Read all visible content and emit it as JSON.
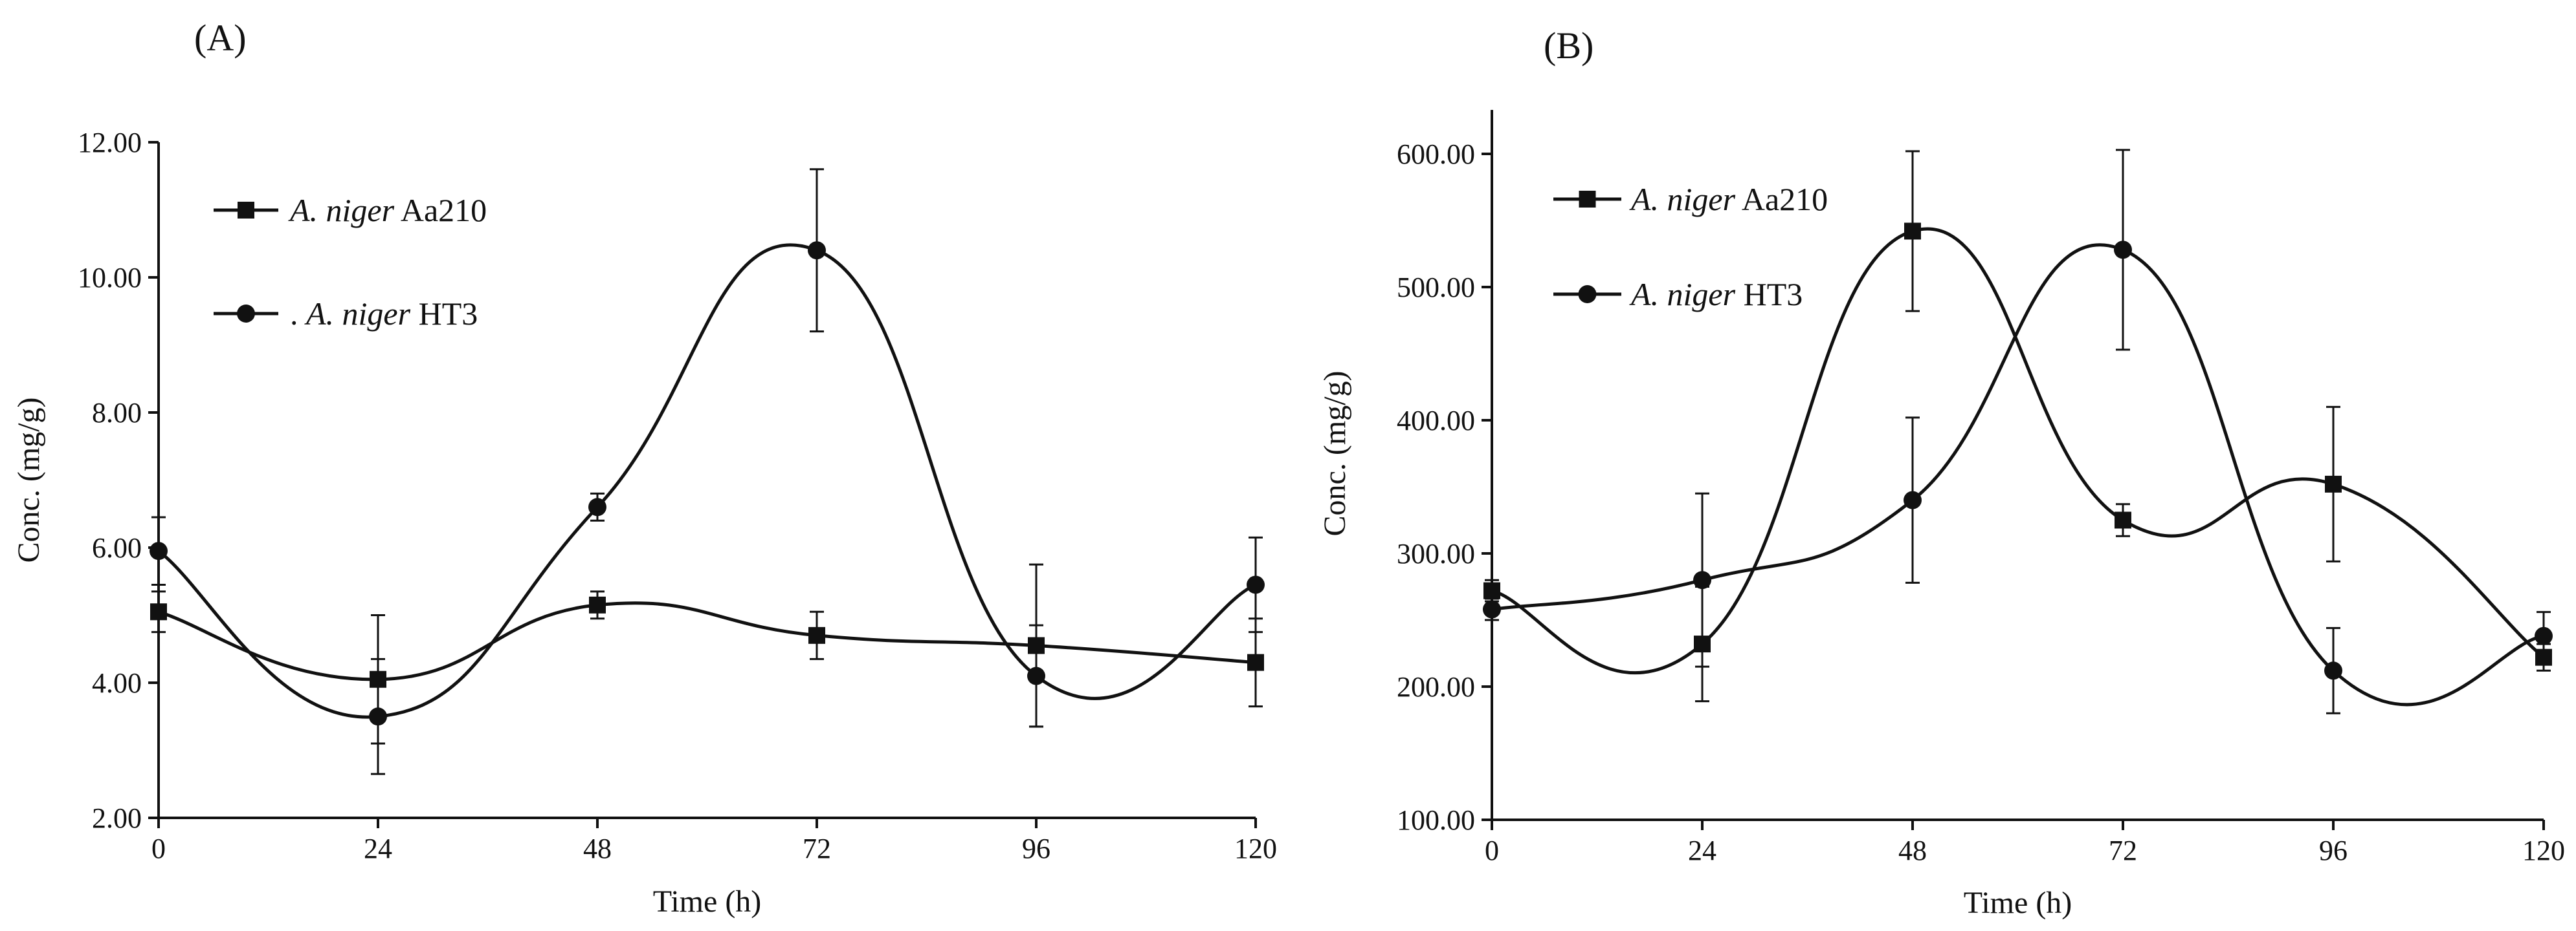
{
  "figure": {
    "panel_label_a": "(A)",
    "panel_label_b": "(B)"
  },
  "chart_data": [
    {
      "type": "line",
      "panel": "(A)",
      "title": "",
      "xlabel": "Time (h)",
      "ylabel": "Conc. (mg/g)",
      "x": [
        0,
        24,
        48,
        72,
        96,
        120
      ],
      "xticks": [
        "0",
        "24",
        "48",
        "72",
        "96",
        "120"
      ],
      "xlim": [
        0,
        120
      ],
      "ylim": [
        2,
        12
      ],
      "yticks": [
        "2.00",
        "4.00",
        "6.00",
        "8.00",
        "10.00",
        "12.00"
      ],
      "ytick_values": [
        2,
        4,
        6,
        8,
        10,
        12
      ],
      "grid": false,
      "legend_position": "top-left",
      "series": [
        {
          "name": "A. niger Aa210",
          "legend_prefix": "",
          "legend_italic": "A. niger",
          "legend_rest": " Aa210",
          "marker": "square",
          "values": [
            5.05,
            4.05,
            5.15,
            4.7,
            4.55,
            4.3
          ],
          "errors": [
            0.3,
            0.95,
            0.2,
            0.35,
            1.2,
            0.65
          ]
        },
        {
          "name": "A. niger HT3",
          "legend_prefix": ". ",
          "legend_italic": "A. niger",
          "legend_rest": " HT3",
          "marker": "circle",
          "values": [
            5.95,
            3.5,
            6.6,
            10.4,
            4.1,
            5.45
          ],
          "errors": [
            0.5,
            0.85,
            0.2,
            1.2,
            0.75,
            0.7
          ]
        }
      ]
    },
    {
      "type": "line",
      "panel": "(B)",
      "title": "",
      "xlabel": "Time (h)",
      "ylabel": "Conc. (mg/g)",
      "x": [
        0,
        24,
        48,
        72,
        96,
        120
      ],
      "xticks": [
        "0",
        "24",
        "48",
        "72",
        "96",
        "120"
      ],
      "xlim": [
        0,
        120
      ],
      "ylim": [
        100,
        650
      ],
      "yticks": [
        "100.00",
        "200.00",
        "300.00",
        "400.00",
        "500.00",
        "600.00"
      ],
      "ytick_values": [
        100,
        200,
        300,
        400,
        500,
        600
      ],
      "grid": false,
      "legend_position": "top-left",
      "series": [
        {
          "name": "A. niger Aa210",
          "legend_prefix": "",
          "legend_italic": "A. niger",
          "legend_rest": " Aa210",
          "marker": "square",
          "values": [
            272,
            232,
            542,
            325,
            352,
            222
          ],
          "errors": [
            8,
            43,
            60,
            12,
            58,
            10
          ]
        },
        {
          "name": "A. niger HT3",
          "legend_prefix": "",
          "legend_italic": "A. niger",
          "legend_rest": " HT3",
          "marker": "circle",
          "values": [
            258,
            280,
            340,
            528,
            212,
            238
          ],
          "errors": [
            8,
            65,
            62,
            75,
            32,
            18
          ]
        }
      ]
    }
  ]
}
